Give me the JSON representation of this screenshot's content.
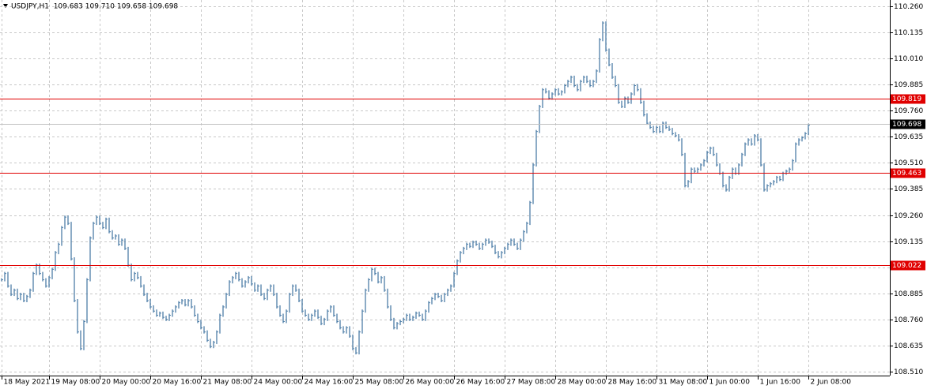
{
  "chart_data": {
    "type": "price-bars",
    "title": "USDJPY,H1  109.683 109.710 109.658 109.698",
    "series": [
      {
        "name": "USDJPY",
        "color": "#4d7ea8",
        "values": [
          108.95,
          108.98,
          108.92,
          108.88,
          108.9,
          108.86,
          108.88,
          108.85,
          108.87,
          108.9,
          108.98,
          109.02,
          108.98,
          108.95,
          108.92,
          108.96,
          109.0,
          109.08,
          109.12,
          109.2,
          109.25,
          109.22,
          109.05,
          108.85,
          108.7,
          108.62,
          108.75,
          108.95,
          109.15,
          109.22,
          109.25,
          109.22,
          109.2,
          109.24,
          109.18,
          109.15,
          109.16,
          109.12,
          109.14,
          109.1,
          109.02,
          108.95,
          108.98,
          108.96,
          108.92,
          108.88,
          108.85,
          108.82,
          108.8,
          108.78,
          108.79,
          108.77,
          108.76,
          108.78,
          108.8,
          108.82,
          108.84,
          108.85,
          108.83,
          108.85,
          108.82,
          108.78,
          108.75,
          108.72,
          108.7,
          108.66,
          108.63,
          108.65,
          108.7,
          108.78,
          108.82,
          108.88,
          108.94,
          108.96,
          108.98,
          108.95,
          108.92,
          108.94,
          108.96,
          108.93,
          108.9,
          108.92,
          108.88,
          108.86,
          108.9,
          108.92,
          108.88,
          108.82,
          108.78,
          108.75,
          108.8,
          108.88,
          108.92,
          108.9,
          108.85,
          108.8,
          108.78,
          108.76,
          108.78,
          108.8,
          108.77,
          108.74,
          108.76,
          108.8,
          108.82,
          108.78,
          108.75,
          108.72,
          108.7,
          108.72,
          108.68,
          108.62,
          108.6,
          108.7,
          108.8,
          108.9,
          108.95,
          109.0,
          108.98,
          108.94,
          108.96,
          108.9,
          108.82,
          108.76,
          108.72,
          108.74,
          108.75,
          108.76,
          108.78,
          108.76,
          108.77,
          108.79,
          108.78,
          108.76,
          108.8,
          108.84,
          108.86,
          108.88,
          108.87,
          108.85,
          108.88,
          108.9,
          108.92,
          108.98,
          109.04,
          109.08,
          109.1,
          109.12,
          109.11,
          109.13,
          109.12,
          109.1,
          109.12,
          109.14,
          109.13,
          109.11,
          109.08,
          109.06,
          109.08,
          109.1,
          109.12,
          109.14,
          109.12,
          109.1,
          109.14,
          109.18,
          109.22,
          109.32,
          109.5,
          109.66,
          109.78,
          109.86,
          109.85,
          109.82,
          109.84,
          109.86,
          109.84,
          109.85,
          109.88,
          109.9,
          109.92,
          109.88,
          109.86,
          109.9,
          109.92,
          109.9,
          109.88,
          109.9,
          109.95,
          110.1,
          110.18,
          110.05,
          109.98,
          109.92,
          109.88,
          109.8,
          109.78,
          109.82,
          109.8,
          109.84,
          109.88,
          109.86,
          109.8,
          109.74,
          109.7,
          109.68,
          109.66,
          109.68,
          109.66,
          109.7,
          109.68,
          109.67,
          109.65,
          109.64,
          109.62,
          109.55,
          109.4,
          109.42,
          109.48,
          109.47,
          109.48,
          109.5,
          109.52,
          109.56,
          109.58,
          109.55,
          109.5,
          109.46,
          109.4,
          109.38,
          109.44,
          109.48,
          109.46,
          109.5,
          109.55,
          109.6,
          109.62,
          109.6,
          109.64,
          109.62,
          109.5,
          109.38,
          109.4,
          109.41,
          109.42,
          109.44,
          109.43,
          109.46,
          109.47,
          109.48,
          109.52,
          109.6,
          109.62,
          109.63,
          109.65,
          109.69
        ]
      }
    ],
    "xlim": [
      -0.5,
      280.75
    ],
    "xticks": [
      {
        "value": 0,
        "label": "18 May 2021"
      },
      {
        "value": 15,
        "label": "19 May 08:00"
      },
      {
        "value": 31,
        "label": "20 May 00:00"
      },
      {
        "value": 47,
        "label": "20 May 16:00"
      },
      {
        "value": 63,
        "label": "21 May 08:00"
      },
      {
        "value": 79,
        "label": "24 May 00:00"
      },
      {
        "value": 95,
        "label": "24 May 16:00"
      },
      {
        "value": 111,
        "label": "25 May 08:00"
      },
      {
        "value": 127,
        "label": "26 May 00:00"
      },
      {
        "value": 143,
        "label": "26 May 16:00"
      },
      {
        "value": 159,
        "label": "27 May 08:00"
      },
      {
        "value": 175,
        "label": "28 May 00:00"
      },
      {
        "value": 191,
        "label": "28 May 16:00"
      },
      {
        "value": 207,
        "label": "31 May 08:00"
      },
      {
        "value": 223,
        "label": "1 Jun 00:00"
      },
      {
        "value": 239,
        "label": "1 Jun 16:00"
      },
      {
        "value": 255,
        "label": "2 Jun 08:00"
      }
    ],
    "ylim": [
      108.491,
      110.29
    ],
    "yticks": [
      {
        "value": 110.26,
        "label": "110.260"
      },
      {
        "value": 110.135,
        "label": "110.135"
      },
      {
        "value": 110.01,
        "label": "110.010"
      },
      {
        "value": 109.885,
        "label": "109.885"
      },
      {
        "value": 109.76,
        "label": "109.760"
      },
      {
        "value": 109.635,
        "label": "109.635"
      },
      {
        "value": 109.51,
        "label": "109.510"
      },
      {
        "value": 109.385,
        "label": "109.385"
      },
      {
        "value": 109.26,
        "label": "109.260"
      },
      {
        "value": 109.135,
        "label": "109.135"
      },
      {
        "value": 109.01,
        "label": "109.010"
      },
      {
        "value": 108.885,
        "label": "108.885"
      },
      {
        "value": 108.76,
        "label": "108.760"
      },
      {
        "value": 108.635,
        "label": "108.635"
      },
      {
        "value": 108.51,
        "label": "108.510"
      }
    ],
    "grid": true,
    "levels": [
      {
        "value": 109.819,
        "color": "#e00000"
      },
      {
        "value": 109.463,
        "color": "#e00000"
      },
      {
        "value": 109.022,
        "color": "#e00000"
      }
    ],
    "last_price": {
      "value": 109.698,
      "color": "#000000"
    }
  }
}
